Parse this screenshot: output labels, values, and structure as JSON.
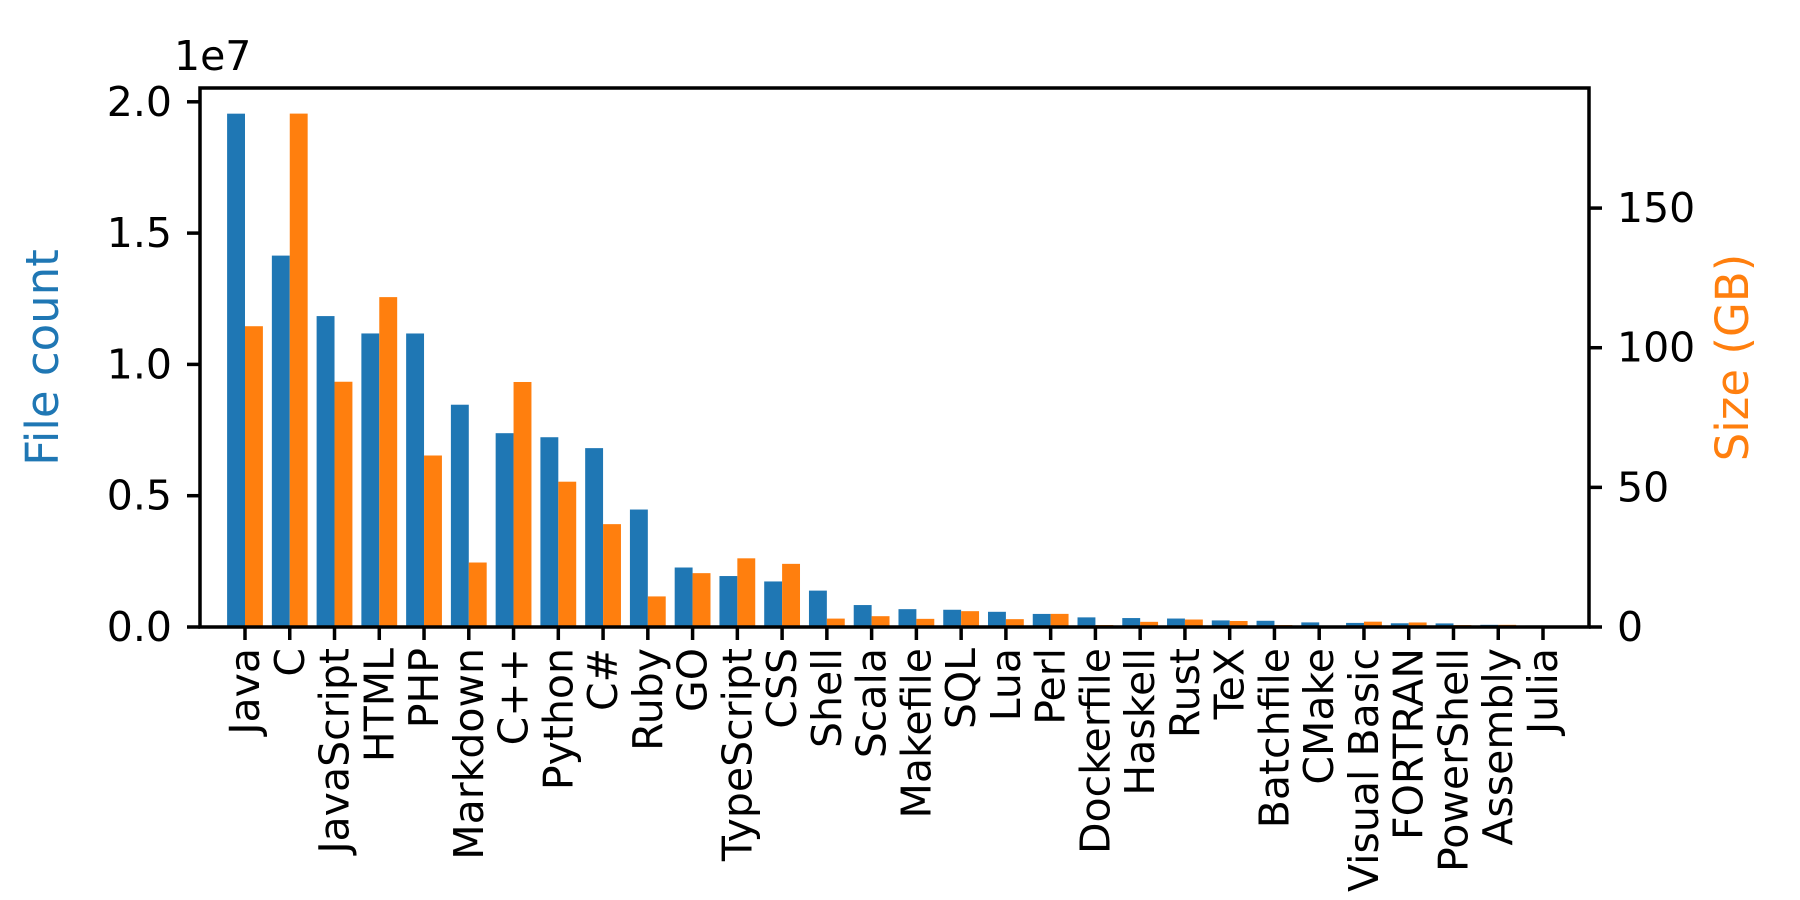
{
  "chart_data": {
    "type": "bar",
    "title": "",
    "xlabel": "",
    "ylabel_left": "File count",
    "ylabel_right": "Size (GB)",
    "offset_text": "1e7",
    "grid": false,
    "legend": "none",
    "categories": [
      "Java",
      "C",
      "JavaScript",
      "HTML",
      "PHP",
      "Markdown",
      "C++",
      "Python",
      "C#",
      "Ruby",
      "GO",
      "TypeScript",
      "CSS",
      "Shell",
      "Scala",
      "Makefile",
      "SQL",
      "Lua",
      "Perl",
      "Dockerfile",
      "Haskell",
      "Rust",
      "TeX",
      "Batchfile",
      "CMake",
      "Visual Basic",
      "FORTRAN",
      "PowerShell",
      "Assembly",
      "Julia"
    ],
    "series": [
      {
        "name": "File count",
        "axis": "left",
        "color": "#1f77b4",
        "values": [
          19548190,
          14143113,
          11839883,
          11178557,
          11177610,
          8464626,
          7380520,
          7226626,
          6811652,
          4473331,
          2265436,
          1940406,
          1734406,
          1385648,
          835755,
          679430,
          656671,
          578554,
          497949,
          366505,
          340623,
          322431,
          251015,
          236945,
          175282,
          155652,
          142038,
          136846,
          82905,
          58317
        ]
      },
      {
        "name": "Size (GB)",
        "axis": "right",
        "color": "#ff7f0e",
        "values": [
          107.7,
          183.83,
          87.82,
          118.12,
          61.41,
          23.09,
          87.73,
          52.03,
          36.83,
          10.95,
          19.28,
          24.59,
          22.61,
          3.01,
          3.87,
          2.92,
          5.67,
          2.81,
          4.7,
          0.71,
          1.85,
          2.68,
          2.15,
          0.7,
          0.54,
          1.91,
          1.62,
          0.69,
          0.78,
          0.29
        ]
      }
    ],
    "axis_left": {
      "ylim": [
        0,
        20525600
      ],
      "tick_values": [
        0,
        5000000,
        10000000,
        15000000,
        20000000
      ],
      "tick_labels": [
        "0.0",
        "0.5",
        "1.0",
        "1.5",
        "2.0"
      ],
      "scale_factor": 10000000
    },
    "axis_right": {
      "ylim": [
        0,
        193.0
      ],
      "tick_values": [
        0,
        50,
        100,
        150
      ],
      "tick_labels": [
        "0",
        "50",
        "100",
        "150"
      ]
    },
    "colors": {
      "file_count": "#1f77b4",
      "size_gb": "#ff7f0e",
      "spine": "#000000",
      "tick_text": "#000000",
      "background": "#ffffff"
    }
  }
}
